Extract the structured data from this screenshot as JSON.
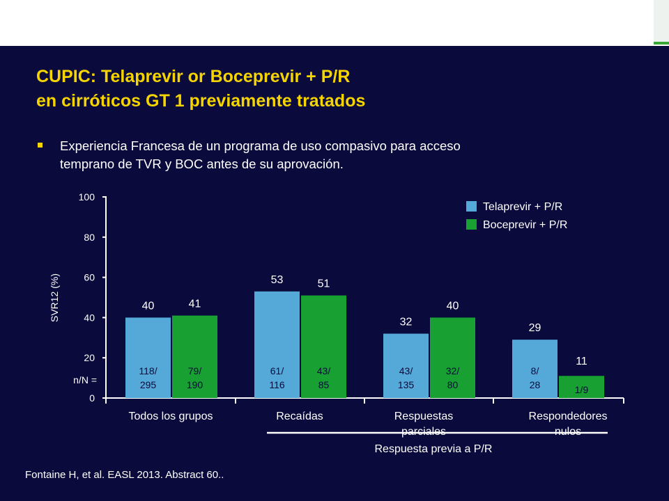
{
  "title_line1": "CUPIC: Telaprevir or Boceprevir + P/R",
  "title_line2": "en cirróticos GT 1 previamente tratados",
  "bullet_line1": "Experiencia Francesa de un programa de uso compasivo para acceso",
  "bullet_line2": "temprano de TVR y  BOC antes de su aprovación.",
  "citation": "Fontaine H, et al. EASL 2013. Abstract 60..",
  "colors": {
    "background": "#0a0a3c",
    "title": "#f5d400",
    "telaprevir": "#54a9d8",
    "boceprevir": "#18a132",
    "text": "#ffffff"
  },
  "chart_data": {
    "type": "bar",
    "ylabel": "SVR12 (%)",
    "ylim": [
      0,
      100
    ],
    "yticks": [
      "0",
      "20",
      "40",
      "60",
      "80",
      "100"
    ],
    "nN_label": "n/N =",
    "group_caption": "Respuesta previa a  P/R",
    "categories": [
      {
        "lines": [
          "Todos los grupos"
        ]
      },
      {
        "lines": [
          "Recaídas"
        ]
      },
      {
        "lines": [
          "Respuestas",
          "parciales"
        ]
      },
      {
        "lines": [
          "Respondedores",
          "nulos"
        ]
      }
    ],
    "series": [
      {
        "name": "Telaprevir + P/R",
        "values": [
          40,
          53,
          32,
          29
        ],
        "labels": [
          "40",
          "53",
          "32",
          "29"
        ],
        "nN": [
          [
            "118/",
            "295"
          ],
          [
            "61/",
            "116"
          ],
          [
            "43/",
            "135"
          ],
          [
            "8/",
            "28"
          ]
        ]
      },
      {
        "name": "Boceprevir + P/R",
        "values": [
          41,
          51,
          40,
          11
        ],
        "labels": [
          "41",
          "51",
          "40",
          "11"
        ],
        "nN": [
          [
            "79/",
            "190"
          ],
          [
            "43/",
            "85"
          ],
          [
            "32/",
            "80"
          ],
          [
            "1/9"
          ]
        ]
      }
    ]
  }
}
